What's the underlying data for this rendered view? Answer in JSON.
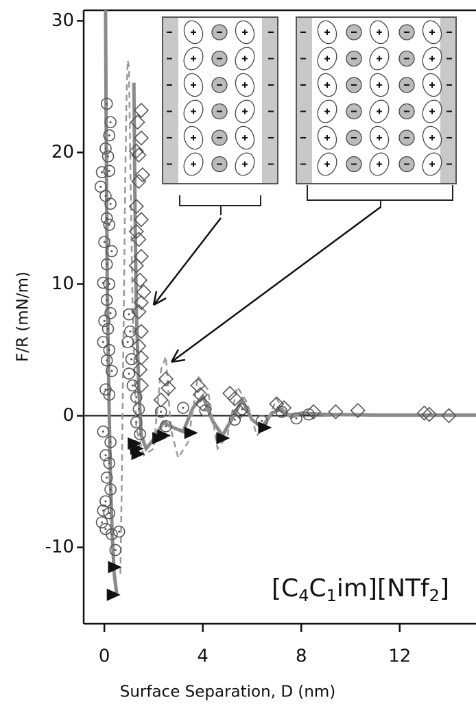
{
  "chart_data": {
    "type": "scatter",
    "xlabel": "Surface Separation, D (nm)",
    "ylabel": "F/R (mN/m)",
    "annotation": [
      "[C",
      "4",
      "C",
      "1",
      "im][NTf",
      "2",
      "]"
    ],
    "xlim": [
      -0.84,
      15.1
    ],
    "ylim": [
      -15.8,
      30.8
    ],
    "xticks": [
      0,
      4,
      8,
      12
    ],
    "yticks": [
      -10,
      0,
      10,
      20,
      30
    ],
    "zero_line": true,
    "series": [
      {
        "marker": "circle",
        "color": "#555555",
        "x": [
          0.1,
          0.25,
          0.2,
          0.05,
          0.15,
          -0.1,
          0.2,
          -0.15,
          0.05,
          0.25,
          0.1,
          0.2,
          0.0,
          0.3,
          0.1,
          -0.05,
          0.2,
          0.1,
          0.25,
          0.0,
          0.15,
          -0.05,
          0.2,
          0.1,
          0.3,
          0.05,
          0.2,
          -0.05,
          0.25,
          0.05,
          0.2,
          0.1,
          0.25,
          0.05,
          -0.05,
          0.2,
          -0.1,
          0.05,
          0.3,
          0.45,
          0.6,
          1.0,
          1.05,
          0.95,
          1.1,
          1.0,
          1.15,
          1.3,
          1.4,
          1.3,
          1.45,
          1.2,
          2.3,
          2.5,
          3.2,
          4.1,
          5.3,
          5.6,
          6.4,
          7.2,
          7.8,
          8.3
        ],
        "values": [
          23.7,
          22.3,
          21.3,
          20.3,
          19.7,
          18.5,
          18.6,
          17.4,
          16.7,
          16.1,
          15,
          14.5,
          13.2,
          12.5,
          11.5,
          10.1,
          10,
          8.8,
          7.8,
          7.2,
          6.6,
          5.6,
          5,
          4.2,
          3.4,
          2,
          1.6,
          -1.2,
          -2,
          -3,
          -3.6,
          -4.7,
          -5.6,
          -6.5,
          -7.2,
          -7.4,
          -8.1,
          -8.6,
          -9,
          -10.2,
          -8.8,
          7.7,
          6.4,
          5.6,
          4.3,
          3.2,
          2.3,
          1.4,
          0.5,
          -0.5,
          -1.4,
          -2.3,
          0.3,
          -0.8,
          0.6,
          0.4,
          -0.3,
          0.5,
          -0.4,
          0.3,
          -0.2,
          0.1
        ]
      },
      {
        "marker": "diamond",
        "color": "#555555",
        "x": [
          1.5,
          1.35,
          1.5,
          1.3,
          1.4,
          1.55,
          1.4,
          1.3,
          1.5,
          1.3,
          1.4,
          1.5,
          1.3,
          1.45,
          1.6,
          1.5,
          1.4,
          1.5,
          1.4,
          1.5,
          1.45,
          1.5,
          2.5,
          2.6,
          2.3,
          3.8,
          3.9,
          4.0,
          5.1,
          5.3,
          5.5,
          7.0,
          7.3,
          8.5,
          9.4,
          10.3,
          13.0,
          13.2,
          14.0
        ],
        "values": [
          23.2,
          22.3,
          21.1,
          20.1,
          19.8,
          18.3,
          17.8,
          15.9,
          14.9,
          14,
          13.4,
          12.1,
          11.4,
          10.3,
          9.4,
          8.6,
          7.9,
          6.4,
          5.3,
          4.4,
          3.5,
          2.3,
          2.8,
          2.1,
          1.2,
          2.3,
          1.6,
          0.9,
          1.7,
          1.3,
          0.3,
          0.9,
          0.6,
          0.3,
          0.3,
          0.4,
          0.2,
          0.1,
          0
        ]
      },
      {
        "marker": "triangle",
        "color": "#111111",
        "x": [
          0.4,
          0.35,
          1.2,
          1.3,
          1.35,
          2.2,
          2.4,
          3.5,
          4.8,
          6.5
        ],
        "values": [
          -11.5,
          -13.6,
          -2.1,
          -2.5,
          -2.9,
          -1.7,
          -1.5,
          -1.3,
          -1.7,
          -0.9
        ]
      },
      {
        "marker": "line",
        "style": "solid",
        "color": "#8a8a8a",
        "x": [
          0.05,
          0.08,
          0.12,
          0.18,
          0.25,
          0.32,
          0.4,
          0.5,
          null,
          1.2,
          1.25,
          1.3,
          1.4,
          1.5,
          1.7,
          2.0,
          2.4,
          2.8,
          3.2,
          3.6,
          4.0,
          4.4,
          4.8,
          5.2,
          5.6,
          6.0,
          6.4,
          6.8,
          7.2,
          7.6,
          8.0,
          9,
          11,
          15.1
        ],
        "values": [
          30.8,
          20,
          10,
          2,
          -5,
          -9,
          -12,
          -13.5,
          null,
          25.3,
          15,
          8,
          2,
          -1.5,
          -2.5,
          -1.8,
          -0.5,
          -0.9,
          -1.2,
          0.6,
          1.5,
          -0.4,
          -1.5,
          -0.2,
          1.2,
          -0.3,
          -0.9,
          0.2,
          0.5,
          -0.1,
          0.2,
          0.1,
          0.05,
          0.05
        ]
      },
      {
        "marker": "line",
        "style": "dashed",
        "color": "#999999",
        "x": [
          0.65,
          0.7,
          0.75,
          0.8,
          0.85,
          0.9,
          0.95,
          1.0,
          1.05,
          1.15,
          1.3,
          1.6,
          2.0,
          2.3,
          2.5,
          2.7,
          3.0,
          3.4,
          3.8,
          4.2,
          4.6,
          5.0,
          5.4,
          5.8,
          6.2,
          6.6,
          7.0,
          7.4,
          7.8
        ],
        "values": [
          -12,
          -6,
          2,
          10,
          18,
          24,
          27,
          26.5,
          20,
          8,
          -1,
          -3,
          -2.5,
          3.5,
          4.5,
          -1,
          -3.2,
          -2,
          3,
          2,
          -2.5,
          -1.5,
          2.2,
          1,
          -1.5,
          -0.6,
          1.3,
          0.1,
          0.2
        ]
      }
    ]
  }
}
